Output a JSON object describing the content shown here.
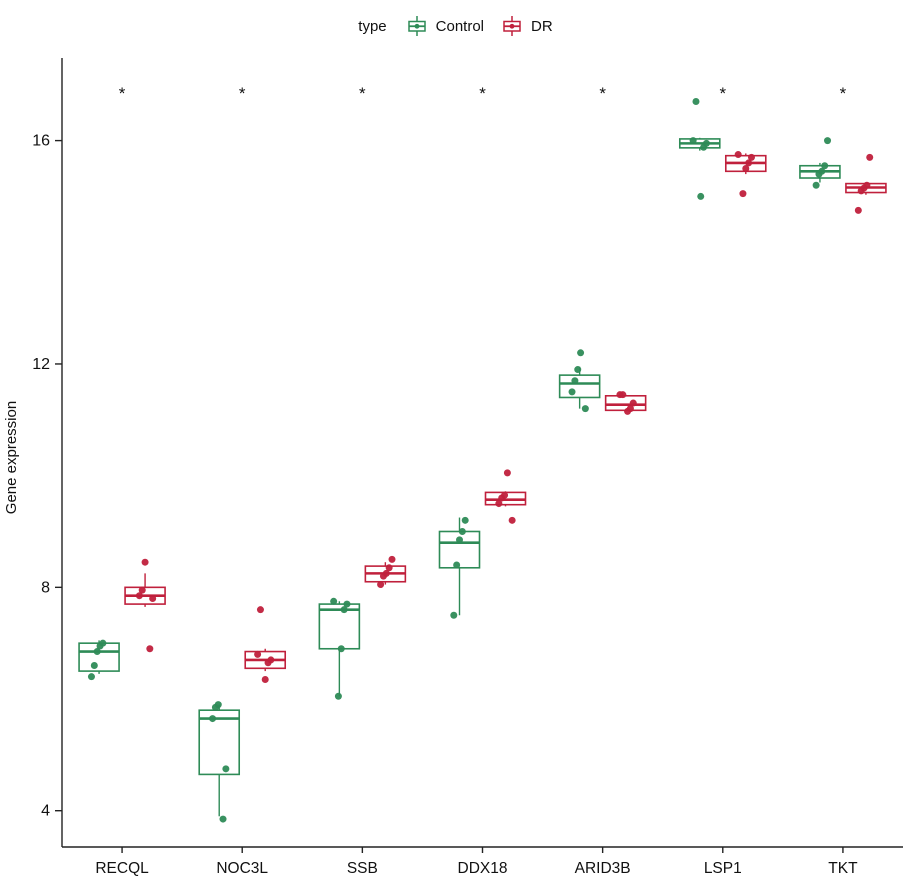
{
  "chart_data": {
    "type": "boxplot",
    "title": "",
    "xlabel": "",
    "ylabel": "Gene expression",
    "ylim": [
      3.35,
      17.3
    ],
    "yticks": [
      4,
      8,
      12,
      16
    ],
    "grid": false,
    "legend": {
      "title": "type",
      "position": "top",
      "entries": [
        {
          "label": "Control",
          "color": "#2e8b57"
        },
        {
          "label": "DR",
          "color": "#c0203c"
        }
      ]
    },
    "categories": [
      "RECQL",
      "NOC3L",
      "SSB",
      "DDX18",
      "ARID3B",
      "LSP1",
      "TKT"
    ],
    "significance": [
      "*",
      "*",
      "*",
      "*",
      "*",
      "*",
      "*"
    ],
    "significance_y": 16.85,
    "series": [
      {
        "name": "Control",
        "color": "#2e8b57",
        "boxes": [
          {
            "whisker_low": 6.45,
            "q1": 6.5,
            "median": 6.85,
            "q3": 7.0,
            "whisker_high": 7.05,
            "points": [
              6.4,
              6.6,
              6.85,
              6.95,
              7.0
            ]
          },
          {
            "whisker_low": 3.9,
            "q1": 4.65,
            "median": 5.65,
            "q3": 5.8,
            "whisker_high": 5.9,
            "points": [
              3.85,
              4.75,
              5.65,
              5.85,
              5.9
            ]
          },
          {
            "whisker_low": 6.05,
            "q1": 6.9,
            "median": 7.6,
            "q3": 7.7,
            "whisker_high": 7.75,
            "points": [
              6.05,
              6.9,
              7.6,
              7.7,
              7.75
            ]
          },
          {
            "whisker_low": 7.5,
            "q1": 8.35,
            "median": 8.8,
            "q3": 9.0,
            "whisker_high": 9.25,
            "points": [
              7.5,
              8.4,
              8.85,
              9.0,
              9.2
            ]
          },
          {
            "whisker_low": 11.2,
            "q1": 11.4,
            "median": 11.65,
            "q3": 11.8,
            "whisker_high": 11.95,
            "points": [
              11.2,
              11.5,
              11.7,
              11.9,
              12.2
            ]
          },
          {
            "whisker_low": 15.82,
            "q1": 15.87,
            "median": 15.95,
            "q3": 16.03,
            "whisker_high": 16.05,
            "points": [
              15.0,
              15.88,
              15.95,
              16.0,
              16.7
            ]
          },
          {
            "whisker_low": 15.25,
            "q1": 15.33,
            "median": 15.45,
            "q3": 15.55,
            "whisker_high": 15.6,
            "points": [
              15.2,
              15.4,
              15.45,
              15.55,
              16.0
            ]
          }
        ]
      },
      {
        "name": "DR",
        "color": "#c0203c",
        "boxes": [
          {
            "whisker_low": 7.65,
            "q1": 7.7,
            "median": 7.85,
            "q3": 8.0,
            "whisker_high": 8.25,
            "points": [
              6.9,
              7.8,
              7.85,
              7.95,
              8.45
            ]
          },
          {
            "whisker_low": 6.5,
            "q1": 6.55,
            "median": 6.7,
            "q3": 6.85,
            "whisker_high": 6.9,
            "points": [
              6.35,
              6.65,
              6.7,
              6.8,
              7.6
            ]
          },
          {
            "whisker_low": 8.05,
            "q1": 8.1,
            "median": 8.25,
            "q3": 8.38,
            "whisker_high": 8.45,
            "points": [
              8.05,
              8.2,
              8.25,
              8.35,
              8.5
            ]
          },
          {
            "whisker_low": 9.45,
            "q1": 9.48,
            "median": 9.57,
            "q3": 9.7,
            "whisker_high": 9.72,
            "points": [
              9.2,
              9.5,
              9.6,
              9.65,
              10.05
            ]
          },
          {
            "whisker_low": 11.15,
            "q1": 11.17,
            "median": 11.27,
            "q3": 11.43,
            "whisker_high": 11.45,
            "points": [
              11.15,
              11.2,
              11.3,
              11.45,
              11.45
            ]
          },
          {
            "whisker_low": 15.4,
            "q1": 15.45,
            "median": 15.6,
            "q3": 15.73,
            "whisker_high": 15.77,
            "points": [
              15.05,
              15.5,
              15.6,
              15.7,
              15.75
            ]
          },
          {
            "whisker_low": 15.03,
            "q1": 15.07,
            "median": 15.16,
            "q3": 15.23,
            "whisker_high": 15.25,
            "points": [
              14.75,
              15.1,
              15.15,
              15.2,
              15.7
            ]
          }
        ]
      }
    ]
  }
}
